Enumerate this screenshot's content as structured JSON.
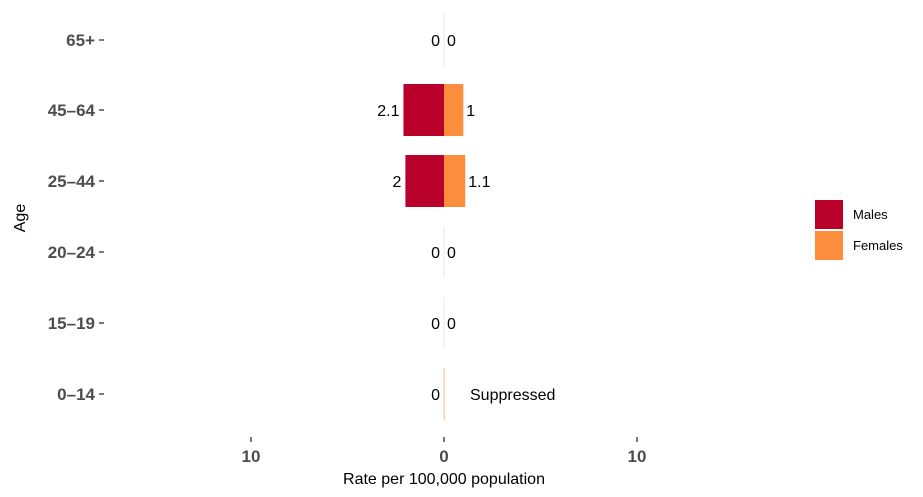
{
  "chart_data": {
    "type": "bar",
    "orientation": "horizontal-diverging",
    "xlabel": "Rate per 100,000 population",
    "ylabel": "Age",
    "categories": [
      "65+",
      "45–64",
      "25–44",
      "20–24",
      "15–19",
      "0–14"
    ],
    "x_tick_labels": [
      "10",
      "0",
      "10"
    ],
    "x_ticks": [
      -10,
      0,
      10
    ],
    "xlim": [
      -10,
      10
    ],
    "grid": false,
    "legend_position": "right",
    "series": [
      {
        "name": "Males",
        "color": "#b8002b",
        "side": "left",
        "values": [
          0,
          2.1,
          2,
          0,
          0,
          0
        ],
        "labels": [
          "0",
          "2.1",
          "2",
          "0",
          "0",
          "0"
        ]
      },
      {
        "name": "Females",
        "color": "#fb8d3d",
        "side": "right",
        "values": [
          0,
          1,
          1.1,
          0,
          0,
          null
        ],
        "labels": [
          "0",
          "1",
          "1.1",
          "0",
          "0",
          "Suppressed"
        ]
      }
    ]
  }
}
